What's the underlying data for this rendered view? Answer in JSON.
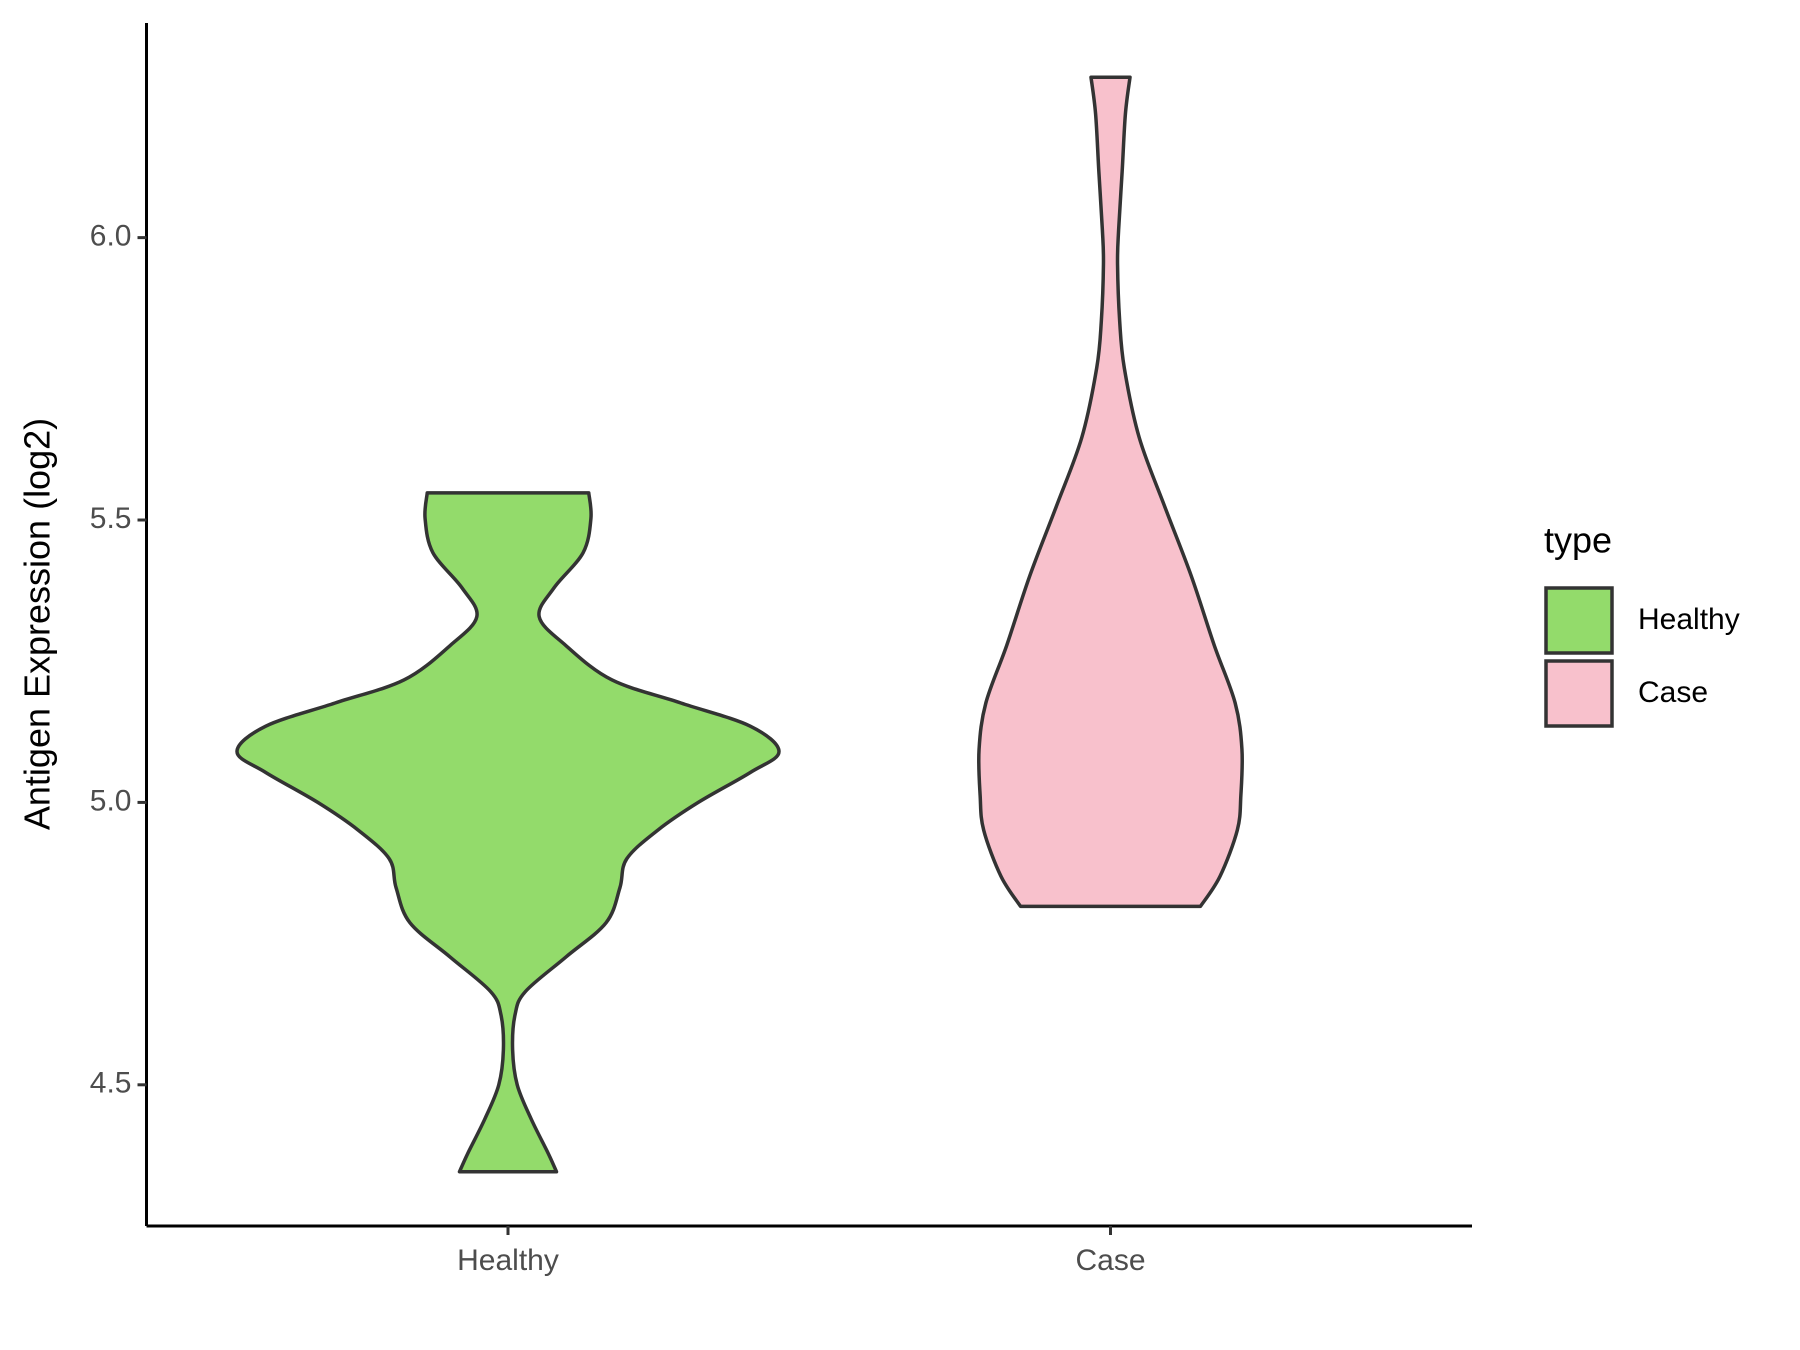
{
  "chart_data": {
    "type": "violin",
    "y_label": "Antigen Expression (log2)",
    "categories": [
      "Healthy",
      "Case"
    ],
    "ylim": [
      4.25,
      6.38
    ],
    "yticks": [
      {
        "value": 4.5,
        "label": "4.5"
      },
      {
        "value": 5,
        "label": "5.0"
      },
      {
        "value": 5.5,
        "label": "5.5"
      },
      {
        "value": 6,
        "label": "6.0"
      }
    ],
    "legend_title": "type",
    "legend_position": "right",
    "series": [
      {
        "name": "Healthy",
        "color": "#93db6b",
        "y": [
          4.346,
          4.378,
          4.44,
          4.5,
          4.562,
          4.624,
          4.665,
          4.726,
          4.787,
          4.849,
          4.9,
          4.951,
          5.0,
          5.053,
          5.09,
          5.135,
          5.176,
          5.217,
          5.278,
          5.329,
          5.38,
          5.442,
          5.503,
          5.548
        ],
        "density": [
          0.179,
          0.149,
          0.085,
          0.034,
          0.017,
          0.026,
          0.064,
          0.213,
          0.362,
          0.413,
          0.438,
          0.553,
          0.702,
          0.894,
          1.0,
          0.894,
          0.638,
          0.383,
          0.213,
          0.115,
          0.17,
          0.277,
          0.306,
          0.298
        ]
      },
      {
        "name": "Case",
        "color": "#f8c1cc",
        "y": [
          4.816,
          4.869,
          4.951,
          5.012,
          5.094,
          5.176,
          5.278,
          5.401,
          5.524,
          5.646,
          5.769,
          5.851,
          5.953,
          6.014,
          6.117,
          6.219,
          6.284
        ],
        "density": [
          0.332,
          0.404,
          0.468,
          0.481,
          0.485,
          0.46,
          0.383,
          0.298,
          0.2,
          0.106,
          0.051,
          0.034,
          0.026,
          0.03,
          0.043,
          0.055,
          0.072
        ]
      }
    ]
  }
}
